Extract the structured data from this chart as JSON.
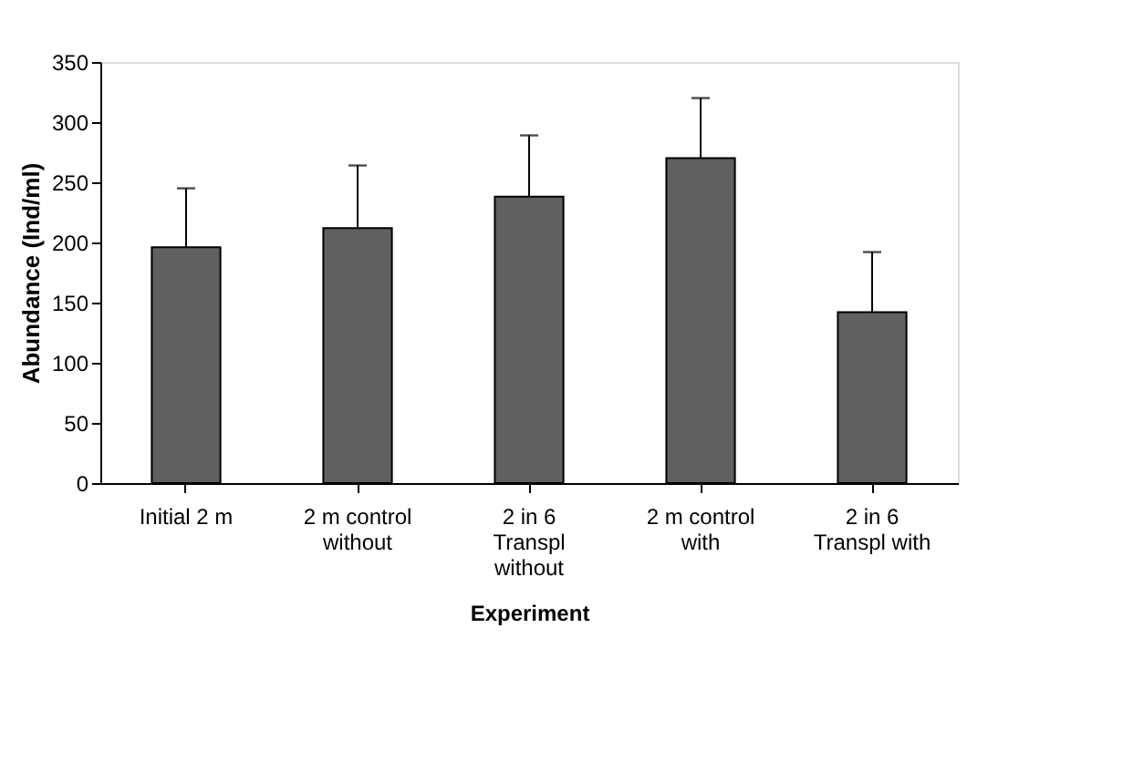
{
  "chart_data": {
    "type": "bar",
    "xlabel": "Experiment",
    "ylabel": "Abundance (Ind/ml)",
    "categories": [
      "Initial 2 m",
      "2 m control\nwithout",
      "2 in 6\nTranspl\nwithout",
      "2 m control\nwith",
      "2 in 6\nTranspl with"
    ],
    "values": [
      196,
      212,
      238,
      270,
      142
    ],
    "errors": [
      [
        196,
        245
      ],
      [
        212,
        264
      ],
      [
        238,
        289
      ],
      [
        270,
        320
      ],
      [
        142,
        192
      ]
    ],
    "color": "#606060",
    "ylim": [
      0,
      350
    ],
    "yticks": [
      0,
      50,
      100,
      150,
      200,
      250,
      300,
      350
    ],
    "grid": false
  }
}
